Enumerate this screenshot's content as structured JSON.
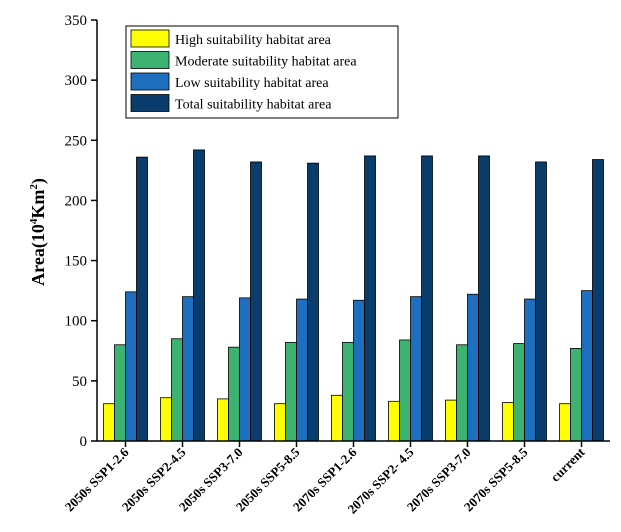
{
  "chart_data": {
    "type": "bar",
    "ylabel": "Area(10^4Km^2)",
    "ylabel_parts": {
      "base": "Area(10",
      "exp1": "4",
      "mid": "Km",
      "exp2": "2",
      "end": ")"
    },
    "xlabel": "",
    "ylim": [
      0,
      350
    ],
    "yticks": [
      0,
      50,
      100,
      150,
      200,
      250,
      300,
      350
    ],
    "grid": false,
    "legend_position": "top-left",
    "categories": [
      "2050s SSP1-2.6",
      "2050s SSP2-4.5",
      "2050s SSP3-7.0",
      "2050s SSP5-8.5",
      "2070s SSP1-2.6",
      "2070s SSP2- 4.5",
      "2070s SSP3-7.0",
      "2070s SSP5-8.5",
      "current"
    ],
    "series": [
      {
        "name": "High suitability habitat area",
        "color": "#ffff00",
        "values": [
          31,
          36,
          35,
          31,
          38,
          33,
          34,
          32,
          31
        ]
      },
      {
        "name": "Moderate suitability habitat area",
        "color": "#3cb371",
        "values": [
          80,
          85,
          78,
          82,
          82,
          84,
          80,
          81,
          77
        ]
      },
      {
        "name": "Low suitability habitat area",
        "color": "#1f6fc0",
        "values": [
          124,
          120,
          119,
          118,
          117,
          120,
          122,
          118,
          125
        ]
      },
      {
        "name": "Total suitability habitat area",
        "color": "#0a3d6b",
        "values": [
          236,
          242,
          232,
          231,
          237,
          237,
          237,
          232,
          234
        ]
      }
    ]
  }
}
